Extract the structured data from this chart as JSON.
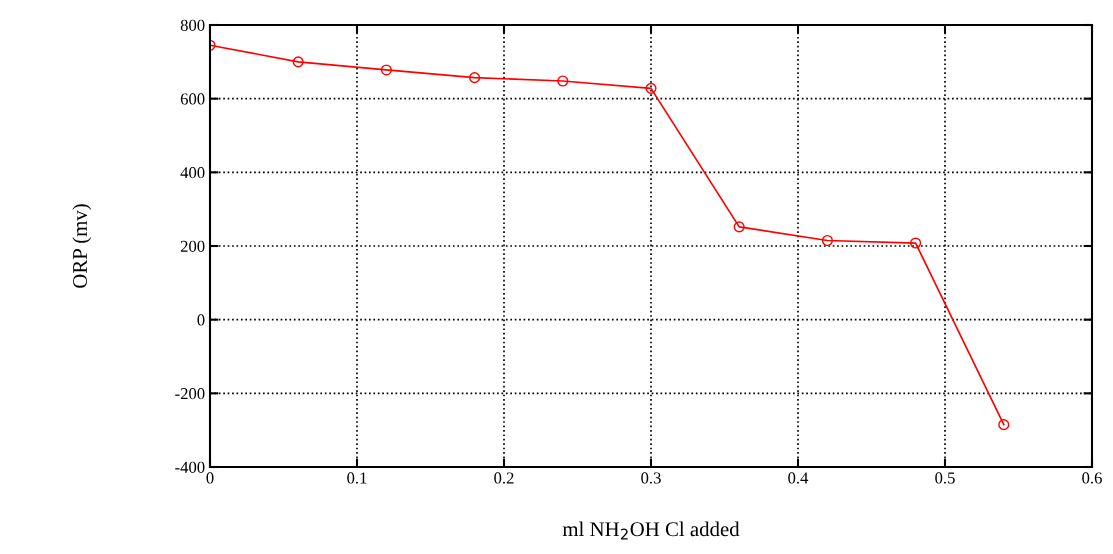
{
  "chart_data": {
    "type": "line",
    "xlabel": "ml NH$_{2}$OH Cl added",
    "ylabel": "ORP (mv)",
    "x": [
      0,
      0.06,
      0.12,
      0.18,
      0.24,
      0.3,
      0.36,
      0.42,
      0.48,
      0.54
    ],
    "series": [
      {
        "color": "#ff0000",
        "values": [
          745,
          700,
          678,
          657,
          648,
          628,
          252,
          215,
          208,
          -285
        ]
      }
    ],
    "xlim": [
      0,
      0.6
    ],
    "xticks": [
      0,
      0.1,
      0.2,
      0.3,
      0.4,
      0.5,
      0.6
    ],
    "ylim": [
      -400,
      800
    ],
    "yticks": [
      -400,
      -200,
      0,
      200,
      400,
      600,
      800
    ],
    "grid": true,
    "marker": "circle",
    "line_style": "solid"
  }
}
